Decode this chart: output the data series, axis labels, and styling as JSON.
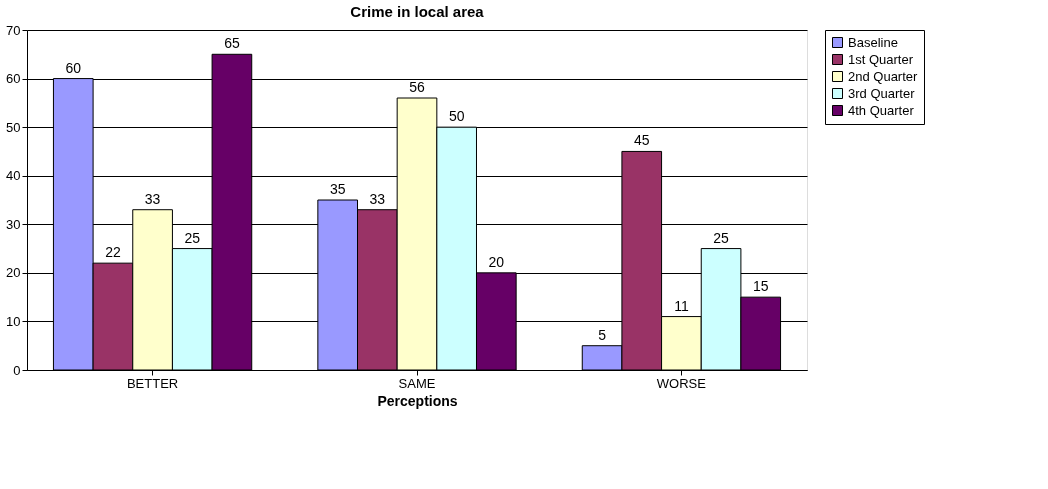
{
  "chart_data": {
    "type": "bar",
    "title": "Crime in local area",
    "xlabel": "Perceptions",
    "categories": [
      "BETTER",
      "SAME",
      "WORSE"
    ],
    "series": [
      {
        "name": "Baseline",
        "color": "#9999ff",
        "values": [
          60,
          35,
          5
        ]
      },
      {
        "name": "1st Quarter",
        "color": "#993366",
        "values": [
          22,
          33,
          45
        ]
      },
      {
        "name": "2nd Quarter",
        "color": "#ffffcc",
        "values": [
          33,
          56,
          11
        ]
      },
      {
        "name": "3rd Quarter",
        "color": "#ccffff",
        "values": [
          25,
          50,
          25
        ]
      },
      {
        "name": "4th Quarter",
        "color": "#660066",
        "values": [
          65,
          20,
          15
        ]
      }
    ],
    "ylim": [
      0,
      70
    ],
    "yticks": [
      0,
      10,
      20,
      30,
      40,
      50,
      60,
      70
    ],
    "grid": "y",
    "legend": "right",
    "data_labels": true
  }
}
